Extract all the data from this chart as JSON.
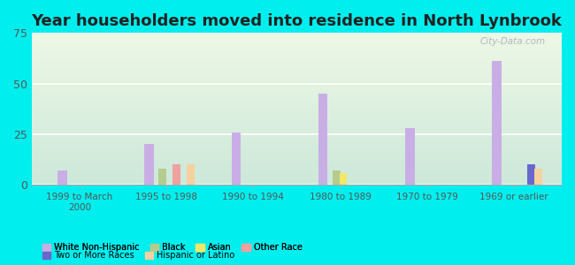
{
  "title": "Year householders moved into residence in North Lynbrook",
  "categories": [
    "1999 to March\n2000",
    "1995 to 1998",
    "1990 to 1994",
    "1980 to 1989",
    "1970 to 1979",
    "1969 or earlier"
  ],
  "series": {
    "White Non-Hispanic": [
      7,
      20,
      26,
      45,
      28,
      61
    ],
    "Black": [
      0,
      8,
      0,
      7,
      0,
      0
    ],
    "Asian": [
      0,
      0,
      0,
      6,
      0,
      0
    ],
    "Other Race": [
      0,
      10,
      0,
      0,
      0,
      0
    ],
    "Two or More Races": [
      0,
      0,
      0,
      0,
      0,
      10
    ],
    "Hispanic or Latino": [
      0,
      10,
      0,
      0,
      0,
      8
    ]
  },
  "colors": {
    "White Non-Hispanic": "#c9aee5",
    "Black": "#b5cc8e",
    "Asian": "#f0e868",
    "Other Race": "#f0a0a0",
    "Two or More Races": "#6868cc",
    "Hispanic or Latino": "#f5d0a0"
  },
  "ylim": [
    0,
    75
  ],
  "yticks": [
    0,
    25,
    50,
    75
  ],
  "background_color": "#00eeee",
  "grid_color": "#ffffff",
  "title_fontsize": 13,
  "bar_width": 0.09,
  "watermark": "City-Data.com"
}
